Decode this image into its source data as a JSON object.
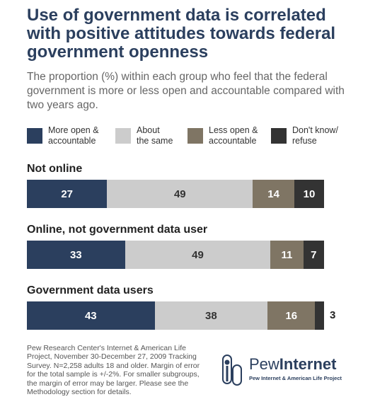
{
  "title": "Use of government data is correlated with positive attitudes towards federal government openness",
  "subtitle": "The proportion (%) within each group who feel that the federal government is more or less open and accountable compared with two years ago.",
  "colors": {
    "more_open": "#2b3f5e",
    "same": "#cccccc",
    "less_open": "#7f7564",
    "dont_know": "#333333"
  },
  "chart_data": {
    "type": "bar",
    "orientation": "horizontal-stacked",
    "categories": [
      "Not online",
      "Online, not government data user",
      "Government data users"
    ],
    "series": [
      {
        "name": "More open & accountable",
        "values": [
          27,
          33,
          43
        ]
      },
      {
        "name": "About the same",
        "values": [
          49,
          49,
          38
        ]
      },
      {
        "name": "Less open & accountable",
        "values": [
          14,
          11,
          16
        ]
      },
      {
        "name": "Don't know/ refuse",
        "values": [
          10,
          7,
          3
        ]
      }
    ],
    "legend": [
      "More open &\naccountable",
      "About\nthe same",
      "Less open &\naccountable",
      "Don't know/\nrefuse"
    ],
    "legend_position": "top",
    "grid": false
  },
  "source": "Pew Research Center's Internet & American Life Project, November 30-December 27, 2009 Tracking Survey. N=2,258 adults 18 and older. Margin of error for the total sample is +/-2%. For smaller subgroups, the margin of error may be larger. Please see the Methodology section for details.",
  "logo": {
    "brand_first": "Pew",
    "brand_second": "Internet",
    "tagline": "Pew Internet & American Life Project"
  }
}
